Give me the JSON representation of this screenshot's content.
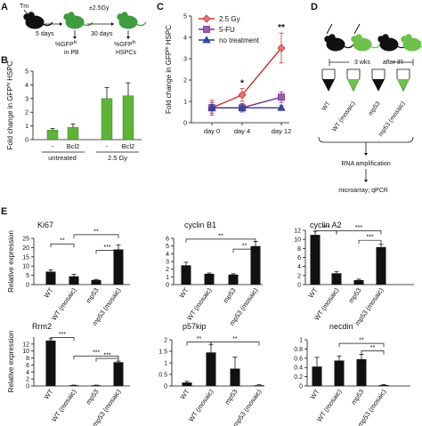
{
  "panel_labels": [
    "A",
    "B",
    "C",
    "D",
    "E"
  ],
  "panel_a": {
    "dose": "Tm",
    "step1": "5 days",
    "irr": "±2.5Gy",
    "step2": "30 days",
    "read1a": "%GFP",
    "read1b": "hi",
    "read1c": "in PB",
    "read2a": "%GFP",
    "read2b": "hi",
    "read2c": "HSPCs"
  },
  "panel_d": {
    "wait": "3 wks",
    "after": "after IR",
    "tubes": [
      "WT",
      "WT (mosaic)",
      "mp53",
      "mp53 (mosaic)"
    ],
    "step1": "RNA amplification",
    "step2": "microarray; qPCR"
  },
  "chart_data": [
    {
      "id": "B",
      "type": "bar",
      "ylabel": "Fold change in GFP",
      "ylabel_sup": "hi",
      "ylabel_tail": " HSPC",
      "ylim": [
        0,
        5
      ],
      "yticks": [
        "0",
        "1",
        "2",
        "3",
        "4",
        "5"
      ],
      "categories": [
        "-",
        "Bcl2",
        "-",
        "Bcl2"
      ],
      "groups": [
        "untreated",
        "2.5 Gy"
      ],
      "values": [
        0.7,
        0.9,
        3.0,
        3.2
      ],
      "errors": [
        0.12,
        0.25,
        0.8,
        0.95
      ],
      "color": "#5cb535"
    },
    {
      "id": "C",
      "type": "line",
      "ylabel": "Fold change in GFP",
      "ylabel_sup": "hi",
      "ylabel_tail": " HSPC",
      "ylim": [
        0,
        5
      ],
      "yticks": [
        "0",
        "1",
        "2",
        "3",
        "4",
        "5"
      ],
      "categories": [
        "day 0",
        "day 4",
        "day 12"
      ],
      "legend": "top-left",
      "series": [
        {
          "name": "2.5 Gy",
          "values": [
            0.7,
            1.3,
            3.5
          ],
          "errors": [
            0.35,
            0.3,
            0.7
          ],
          "color": "#d32f2f",
          "marker": "diamond"
        },
        {
          "name": "5-FU",
          "values": [
            0.7,
            0.7,
            1.2
          ],
          "errors": [
            0.25,
            0.2,
            0.25
          ],
          "color": "#7b2d8e",
          "marker": "square"
        },
        {
          "name": "no treatment",
          "values": [
            0.7,
            0.7,
            0.7
          ],
          "errors": [
            0.15,
            0.1,
            0.1
          ],
          "color": "#2b3a9c",
          "marker": "triangle"
        }
      ],
      "annotations": [
        "*",
        "**"
      ]
    },
    {
      "id": "E1",
      "type": "bar",
      "title": "Ki67",
      "ylabel": "Relative expression",
      "ylim": [
        0,
        25
      ],
      "yticks": [
        "0",
        "5",
        "10",
        "15",
        "20",
        "25"
      ],
      "categories": [
        "WT",
        "WT (mosaic)",
        "mp53",
        "mp53 (mosaic)"
      ],
      "values": [
        7,
        4.5,
        2.5,
        19
      ],
      "errors": [
        1.0,
        1.0,
        0.3,
        2.5
      ],
      "significance": [
        "**",
        "**",
        "***"
      ]
    },
    {
      "id": "E2",
      "type": "bar",
      "title": "cyclin B1",
      "ylim": [
        0,
        6
      ],
      "yticks": [
        "0",
        "1",
        "2",
        "3",
        "4",
        "5",
        "6"
      ],
      "categories": [
        "WT",
        "WT (mosaic)",
        "mp53",
        "mp53 (mosaic)"
      ],
      "values": [
        2.5,
        1.4,
        1.3,
        5.0
      ],
      "errors": [
        0.4,
        0.1,
        0.1,
        0.6
      ],
      "significance": [
        "**",
        "**"
      ]
    },
    {
      "id": "E3",
      "type": "bar",
      "title": "cyclin A2",
      "ylim": [
        0,
        12
      ],
      "yticks": [
        "0",
        "2",
        "4",
        "6",
        "8",
        "10",
        "12"
      ],
      "categories": [
        "WT",
        "WT (mosaic)",
        "mp53",
        "mp53 (mosaic)"
      ],
      "values": [
        11,
        2.5,
        1.0,
        8.3
      ],
      "errors": [
        0.8,
        0.4,
        0.2,
        0.6
      ],
      "significance": [
        "***",
        "***",
        "***"
      ]
    },
    {
      "id": "E4",
      "type": "bar",
      "title": "Rrm2",
      "ylabel": "Relative expression",
      "ylim": [
        0,
        14
      ],
      "yticks": [
        "0",
        "2",
        "4",
        "6",
        "8",
        "10",
        "12"
      ],
      "categories": [
        "WT",
        "WT (mosaic)",
        "mp53",
        "mp53 (mosaic)"
      ],
      "values": [
        13,
        0.2,
        0.2,
        6.8
      ],
      "errors": [
        0.5,
        0.05,
        0.05,
        0.3
      ],
      "significance": [
        "***",
        "***",
        "***"
      ]
    },
    {
      "id": "E5",
      "type": "bar",
      "title": "p57kip",
      "ylim": [
        0,
        2
      ],
      "yticks": [
        "0",
        "0.5",
        "1",
        "1.5",
        "2"
      ],
      "categories": [
        "WT",
        "WT (mosaic)",
        "mp53",
        "mp53 (mosaic)"
      ],
      "values": [
        0.15,
        1.45,
        0.75,
        0.03
      ],
      "errors": [
        0.05,
        0.35,
        0.5,
        0.02
      ],
      "significance": [
        "**",
        "**"
      ]
    },
    {
      "id": "E6",
      "type": "bar",
      "title": "necdin",
      "ylim": [
        0,
        1
      ],
      "yticks": [
        "0",
        "0.2",
        "0.4",
        "0.6",
        "0.8",
        "1"
      ],
      "categories": [
        "WT",
        "WT (mosaic)",
        "mp53",
        "mp53 (mosaic)"
      ],
      "values": [
        0.42,
        0.55,
        0.58,
        0.02
      ],
      "errors": [
        0.2,
        0.1,
        0.1,
        0.01
      ],
      "significance": [
        "**",
        "**"
      ]
    }
  ]
}
